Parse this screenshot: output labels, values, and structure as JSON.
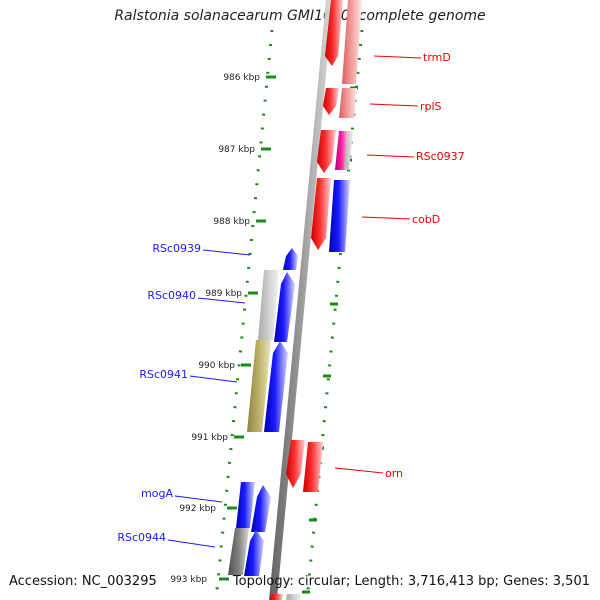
{
  "title": "Ralstonia solanacearum GMI1000, complete genome",
  "accession_text": "Accession: NC_003295",
  "summary_text": "Topology: circular; Length: 3,716,413 bp; Genes: 3,501",
  "ticks": [
    {
      "label": "986 kbp"
    },
    {
      "label": "987 kbp"
    },
    {
      "label": "988 kbp"
    },
    {
      "label": "989 kbp"
    },
    {
      "label": "990 kbp"
    },
    {
      "label": "991 kbp"
    },
    {
      "label": "992 kbp"
    },
    {
      "label": "993 kbp"
    }
  ],
  "forward_genes": [
    {
      "name": "RSc0939",
      "color": "#1a1aff"
    },
    {
      "name": "RSc0940",
      "color": "#1a1aff"
    },
    {
      "name": "RSc0941",
      "color": "#1a1aff"
    },
    {
      "name": "mogA",
      "color": "#1a1aff"
    },
    {
      "name": "RSc0944",
      "color": "#1a1aff"
    }
  ],
  "reverse_genes": [
    {
      "name": "trmD",
      "color": "#ee0000"
    },
    {
      "name": "rplS",
      "color": "#ee0000"
    },
    {
      "name": "RSc0937",
      "color": "#ee0000"
    },
    {
      "name": "cobD",
      "color": "#ee0000"
    },
    {
      "name": "orn",
      "color": "#ee0000"
    }
  ],
  "colors": {
    "forward": "#1a1aff",
    "reverse": "#ee0000",
    "backbone": "#808080",
    "grid": "#1a8a1a",
    "olive": "#b5a85a",
    "magenta": "#e0109a"
  }
}
